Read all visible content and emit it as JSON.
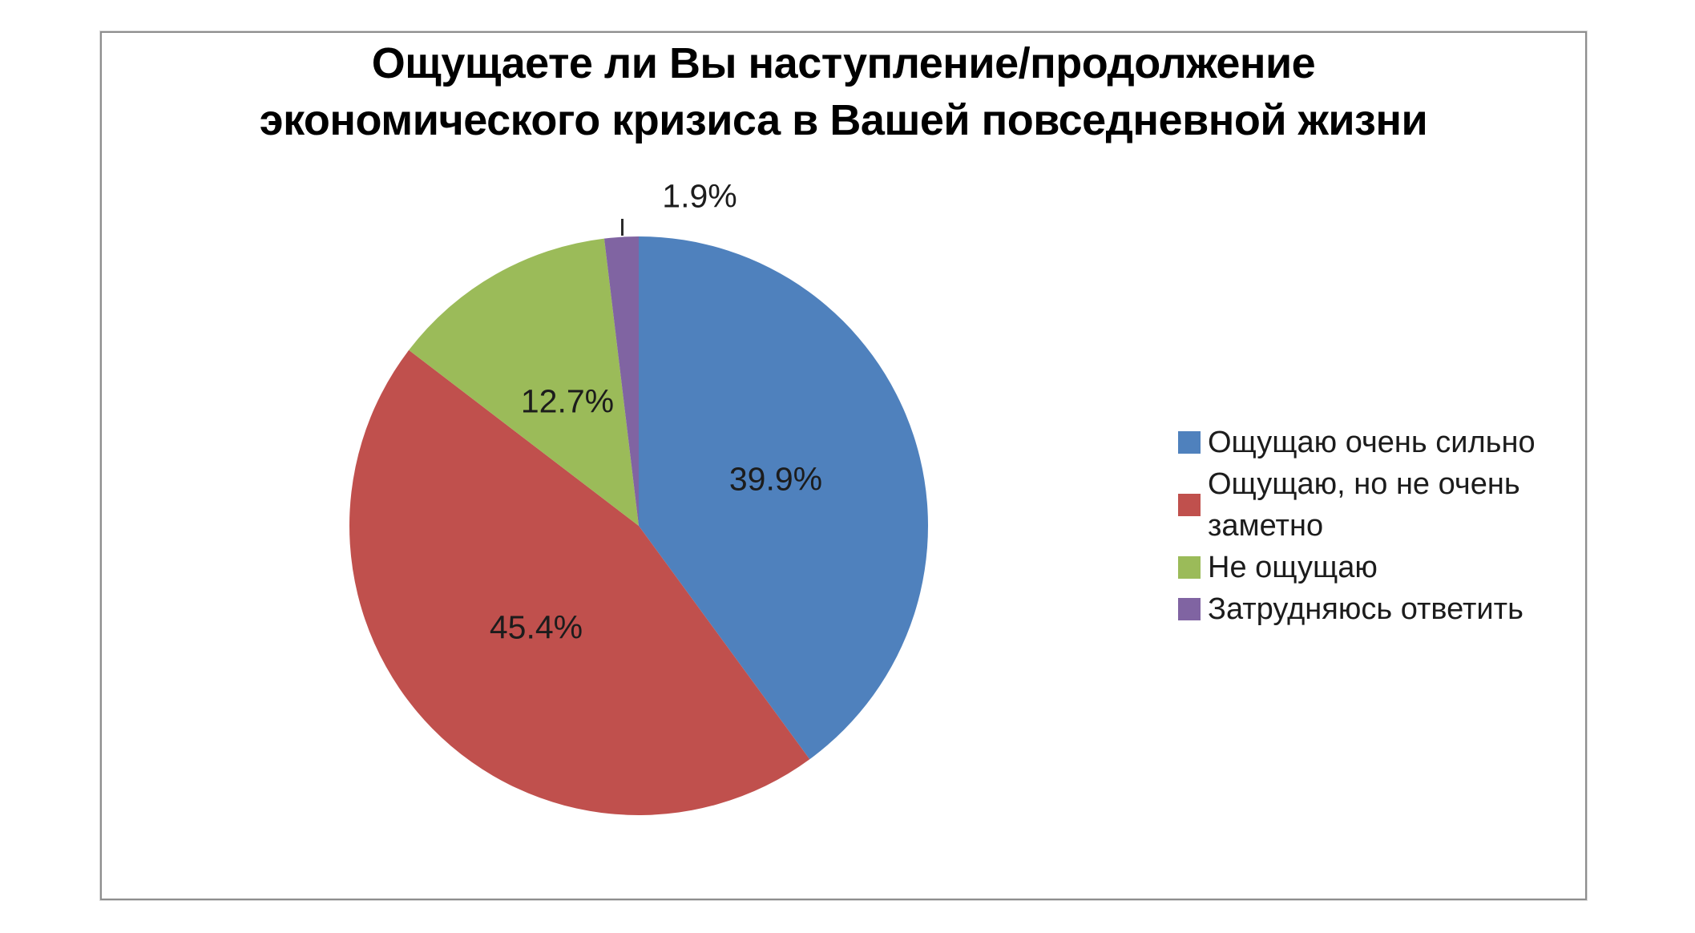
{
  "chart_data": {
    "type": "pie",
    "title": "Ощущаете ли Вы наступление/продолжение экономического кризиса в Вашей повседневной жизни",
    "title_lines": [
      "Ощущаете ли Вы наступление/продолжение",
      "экономического кризиса в Вашей повседневной жизни"
    ],
    "legend_position": "right",
    "start_angle_deg": 0,
    "direction": "clockwise",
    "grid": false,
    "slices": [
      {
        "label": "Ощущаю очень сильно",
        "value": 39.9,
        "display": "39.9%",
        "color": "#4F81BD"
      },
      {
        "label": "Ощущаю, но не очень заметно",
        "value": 45.4,
        "display": "45.4%",
        "color": "#C0504D"
      },
      {
        "label": "Не ощущаю",
        "value": 12.7,
        "display": "12.7%",
        "color": "#9BBB59"
      },
      {
        "label": "Затрудняюсь ответить",
        "value": 1.9,
        "display": "1.9%",
        "color": "#8064A2"
      }
    ]
  }
}
